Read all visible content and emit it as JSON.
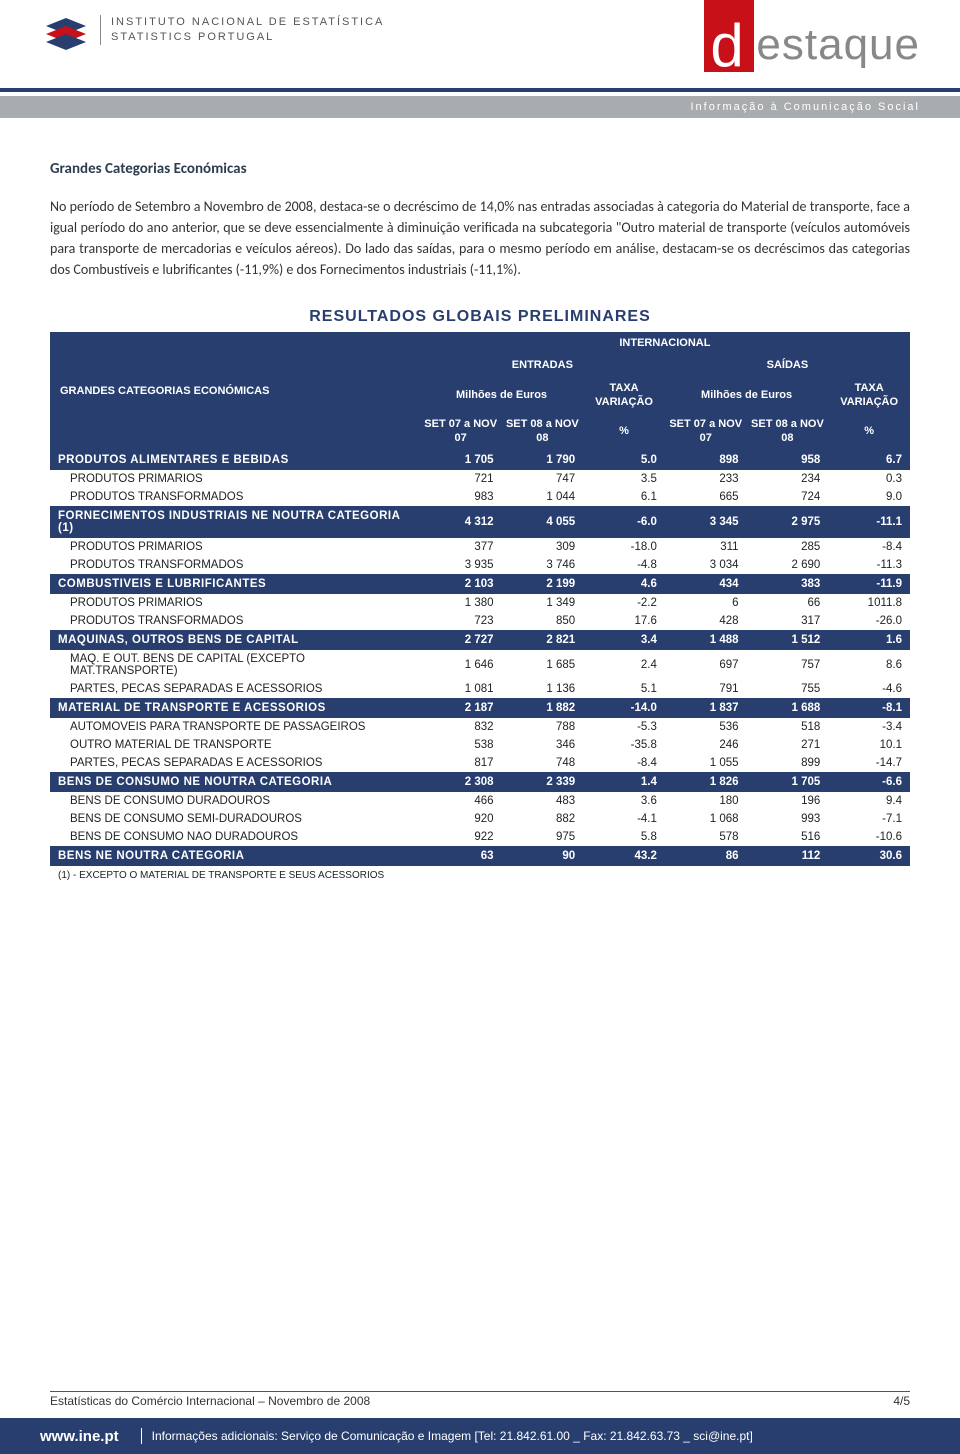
{
  "colors": {
    "navy": "#283e6e",
    "red": "#c81018",
    "grey_bar": "#a9acae"
  },
  "header": {
    "ine_line1": "Instituto Nacional de Estatística",
    "ine_line2": "Statistics Portugal",
    "destaque": "estaque",
    "tagline": "Informação à Comunicação Social"
  },
  "body": {
    "title": "Grandes Categorias Económicas",
    "para": "No período de Setembro a Novembro de 2008, destaca-se o decréscimo de 14,0% nas entradas associadas à categoria do Material de transporte, face a igual período do ano anterior, que se deve essencialmente à diminuição verificada na subcategoria \"Outro material de transporte (veículos automóveis para transporte de mercadorias e veículos aéreos). Do lado das saídas, para o mesmo período em análise, destacam-se os decréscimos das categorias dos Combustíveis e lubrificantes (-11,9%) e dos Fornecimentos industriais (-11,1%)."
  },
  "table": {
    "prelim": "RESULTADOS GLOBAIS PRELIMINARES",
    "scope": "INTERNACIONAL",
    "row_header_title": "GRANDES CATEGORIAS ECONÓMICAS",
    "entradas": "ENTRADAS",
    "saidas": "SAÍDAS",
    "milhoes": "Milhões de Euros",
    "taxa": "TAXA VARIAÇÃO",
    "p07": "SET 07 a NOV 07",
    "p08": "SET 08 a NOV 08",
    "pct": "%",
    "footnote": "(1) - EXCEPTO O MATERIAL DE TRANSPORTE E SEUS ACESSORIOS",
    "groups": [
      {
        "label": "PRODUTOS ALIMENTARES E BEBIDAS",
        "vals": [
          "1 705",
          "1 790",
          "5.0",
          "898",
          "958",
          "6.7"
        ],
        "subs": [
          {
            "label": "PRODUTOS PRIMARIOS",
            "vals": [
              "721",
              "747",
              "3.5",
              "233",
              "234",
              "0.3"
            ]
          },
          {
            "label": "PRODUTOS TRANSFORMADOS",
            "vals": [
              "983",
              "1 044",
              "6.1",
              "665",
              "724",
              "9.0"
            ]
          }
        ]
      },
      {
        "label": "FORNECIMENTOS INDUSTRIAIS NE NOUTRA CATEGORIA (1)",
        "vals": [
          "4 312",
          "4 055",
          "-6.0",
          "3 345",
          "2 975",
          "-11.1"
        ],
        "subs": [
          {
            "label": "PRODUTOS PRIMARIOS",
            "vals": [
              "377",
              "309",
              "-18.0",
              "311",
              "285",
              "-8.4"
            ]
          },
          {
            "label": "PRODUTOS TRANSFORMADOS",
            "vals": [
              "3 935",
              "3 746",
              "-4.8",
              "3 034",
              "2 690",
              "-11.3"
            ]
          }
        ]
      },
      {
        "label": "COMBUSTIVEIS E LUBRIFICANTES",
        "vals": [
          "2 103",
          "2 199",
          "4.6",
          "434",
          "383",
          "-11.9"
        ],
        "subs": [
          {
            "label": "PRODUTOS PRIMARIOS",
            "vals": [
              "1 380",
              "1 349",
              "-2.2",
              "6",
              "66",
              "1011.8"
            ]
          },
          {
            "label": "PRODUTOS TRANSFORMADOS",
            "vals": [
              "723",
              "850",
              "17.6",
              "428",
              "317",
              "-26.0"
            ]
          }
        ]
      },
      {
        "label": "MAQUINAS, OUTROS BENS DE CAPITAL",
        "vals": [
          "2 727",
          "2 821",
          "3.4",
          "1 488",
          "1 512",
          "1.6"
        ],
        "subs": [
          {
            "label": "MAQ. E OUT. BENS DE CAPITAL (EXCEPTO MAT.TRANSPORTE)",
            "vals": [
              "1 646",
              "1 685",
              "2.4",
              "697",
              "757",
              "8.6"
            ]
          },
          {
            "label": "PARTES, PECAS SEPARADAS E ACESSORIOS",
            "vals": [
              "1 081",
              "1 136",
              "5.1",
              "791",
              "755",
              "-4.6"
            ]
          }
        ]
      },
      {
        "label": "MATERIAL DE TRANSPORTE E ACESSORIOS",
        "vals": [
          "2 187",
          "1 882",
          "-14.0",
          "1 837",
          "1 688",
          "-8.1"
        ],
        "subs": [
          {
            "label": "AUTOMOVEIS PARA TRANSPORTE DE PASSAGEIROS",
            "vals": [
              "832",
              "788",
              "-5.3",
              "536",
              "518",
              "-3.4"
            ]
          },
          {
            "label": "OUTRO MATERIAL DE TRANSPORTE",
            "vals": [
              "538",
              "346",
              "-35.8",
              "246",
              "271",
              "10.1"
            ]
          },
          {
            "label": "PARTES, PECAS SEPARADAS E ACESSORIOS",
            "vals": [
              "817",
              "748",
              "-8.4",
              "1 055",
              "899",
              "-14.7"
            ]
          }
        ]
      },
      {
        "label": "BENS DE CONSUMO NE NOUTRA CATEGORIA",
        "vals": [
          "2 308",
          "2 339",
          "1.4",
          "1 826",
          "1 705",
          "-6.6"
        ],
        "subs": [
          {
            "label": "BENS DE CONSUMO DURADOUROS",
            "vals": [
              "466",
              "483",
              "3.6",
              "180",
              "196",
              "9.4"
            ]
          },
          {
            "label": "BENS DE CONSUMO SEMI-DURADOUROS",
            "vals": [
              "920",
              "882",
              "-4.1",
              "1 068",
              "993",
              "-7.1"
            ]
          },
          {
            "label": "BENS DE CONSUMO NAO DURADOUROS",
            "vals": [
              "922",
              "975",
              "5.8",
              "578",
              "516",
              "-10.6"
            ]
          }
        ]
      },
      {
        "label": "BENS NE NOUTRA CATEGORIA",
        "vals": [
          "63",
          "90",
          "43.2",
          "86",
          "112",
          "30.6"
        ],
        "subs": []
      }
    ]
  },
  "footer": {
    "left": "Estatísticas do Comércio Internacional – Novembro de 2008",
    "right": "4/5",
    "site_url": "www.ine.pt",
    "site_info": "Informações adicionais: Serviço de Comunicação e Imagem [Tel: 21.842.61.00 _ Fax: 21.842.63.73 _ sci@ine.pt]"
  }
}
